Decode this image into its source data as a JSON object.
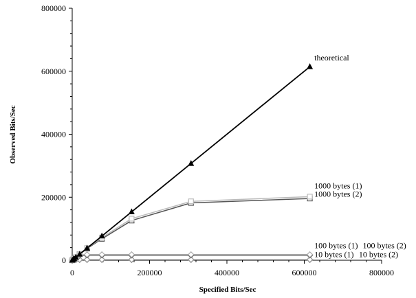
{
  "chart_data": {
    "type": "line",
    "xlabel": "Specified Bits/Sec",
    "ylabel": "Observed Bits/Sec",
    "xlim": [
      0,
      800000
    ],
    "ylim": [
      0,
      800000
    ],
    "x_ticks": [
      0,
      200000,
      400000,
      600000,
      800000
    ],
    "x_tick_labels": [
      "0",
      "200000",
      "400000",
      "600000",
      "800000"
    ],
    "y_ticks": [
      0,
      200000,
      400000,
      600000,
      800000
    ],
    "y_tick_labels": [
      "0",
      "200000",
      "400000",
      "600000",
      "800000"
    ],
    "grid": false,
    "series": [
      {
        "name": "theoretical",
        "marker": "triangle",
        "color": "#000000",
        "points": [
          [
            0,
            0
          ],
          [
            2400,
            2400
          ],
          [
            4800,
            4800
          ],
          [
            9600,
            9600
          ],
          [
            19200,
            19200
          ],
          [
            38400,
            38400
          ],
          [
            76800,
            76800
          ],
          [
            153600,
            153600
          ],
          [
            307200,
            307200
          ],
          [
            614400,
            614400
          ]
        ]
      },
      {
        "name": "1000 bytes (1)",
        "marker": "square",
        "color": "#bbbbbb",
        "points": [
          [
            0,
            0
          ],
          [
            2400,
            2400
          ],
          [
            4800,
            4800
          ],
          [
            9600,
            9600
          ],
          [
            19200,
            19200
          ],
          [
            38400,
            38400
          ],
          [
            76800,
            72000
          ],
          [
            153600,
            132000
          ],
          [
            307200,
            187000
          ],
          [
            614400,
            202000
          ]
        ]
      },
      {
        "name": "1000 bytes (2)",
        "marker": "square",
        "color": "#555555",
        "points": [
          [
            0,
            0
          ],
          [
            2400,
            2400
          ],
          [
            4800,
            4800
          ],
          [
            9600,
            9600
          ],
          [
            19200,
            19200
          ],
          [
            38400,
            37000
          ],
          [
            76800,
            68000
          ],
          [
            153600,
            126000
          ],
          [
            307200,
            182000
          ],
          [
            614400,
            196000
          ]
        ]
      },
      {
        "name": "100 bytes (1)",
        "marker": "diamond",
        "color": "#aaaaaa",
        "points": [
          [
            0,
            0
          ],
          [
            2400,
            2400
          ],
          [
            4800,
            4800
          ],
          [
            9600,
            9600
          ],
          [
            19200,
            17000
          ],
          [
            38400,
            18000
          ],
          [
            76800,
            18000
          ],
          [
            153600,
            18000
          ],
          [
            307200,
            18000
          ],
          [
            614400,
            18000
          ]
        ]
      },
      {
        "name": "100 bytes (2)",
        "marker": "diamond",
        "color": "#444444",
        "points": [
          [
            0,
            0
          ],
          [
            2400,
            2400
          ],
          [
            4800,
            4800
          ],
          [
            9600,
            9600
          ],
          [
            19200,
            15000
          ],
          [
            38400,
            16000
          ],
          [
            76800,
            16000
          ],
          [
            153600,
            16000
          ],
          [
            307200,
            16000
          ],
          [
            614400,
            16000
          ]
        ]
      },
      {
        "name": "10 bytes (1)",
        "marker": "diamond",
        "color": "#999999",
        "points": [
          [
            0,
            0
          ],
          [
            2400,
            1500
          ],
          [
            4800,
            1800
          ],
          [
            9600,
            2000
          ],
          [
            19200,
            2000
          ],
          [
            38400,
            2000
          ],
          [
            76800,
            2000
          ],
          [
            153600,
            2000
          ],
          [
            307200,
            2000
          ],
          [
            614400,
            2000
          ]
        ]
      },
      {
        "name": "10 bytes (2)",
        "marker": "diamond",
        "color": "#666666",
        "points": [
          [
            0,
            0
          ],
          [
            2400,
            1300
          ],
          [
            4800,
            1600
          ],
          [
            9600,
            1700
          ],
          [
            19200,
            1700
          ],
          [
            38400,
            1700
          ],
          [
            76800,
            1700
          ],
          [
            153600,
            1700
          ],
          [
            307200,
            1700
          ],
          [
            614400,
            1700
          ]
        ]
      }
    ],
    "annotations": [
      {
        "text": "theoretical",
        "x": 626000,
        "y": 634000
      },
      {
        "text": "1000 bytes (1)",
        "x": 626000,
        "y": 228000
      },
      {
        "text": "1000 bytes (2)",
        "x": 626000,
        "y": 202000
      },
      {
        "text": "100 bytes (1)",
        "x": 626000,
        "y": 38000
      },
      {
        "text": "100 bytes (2)",
        "x": 751000,
        "y": 38000
      },
      {
        "text": "10 bytes (1)",
        "x": 626000,
        "y": 10000
      },
      {
        "text": "10 bytes (2)",
        "x": 741000,
        "y": 10000
      }
    ]
  }
}
